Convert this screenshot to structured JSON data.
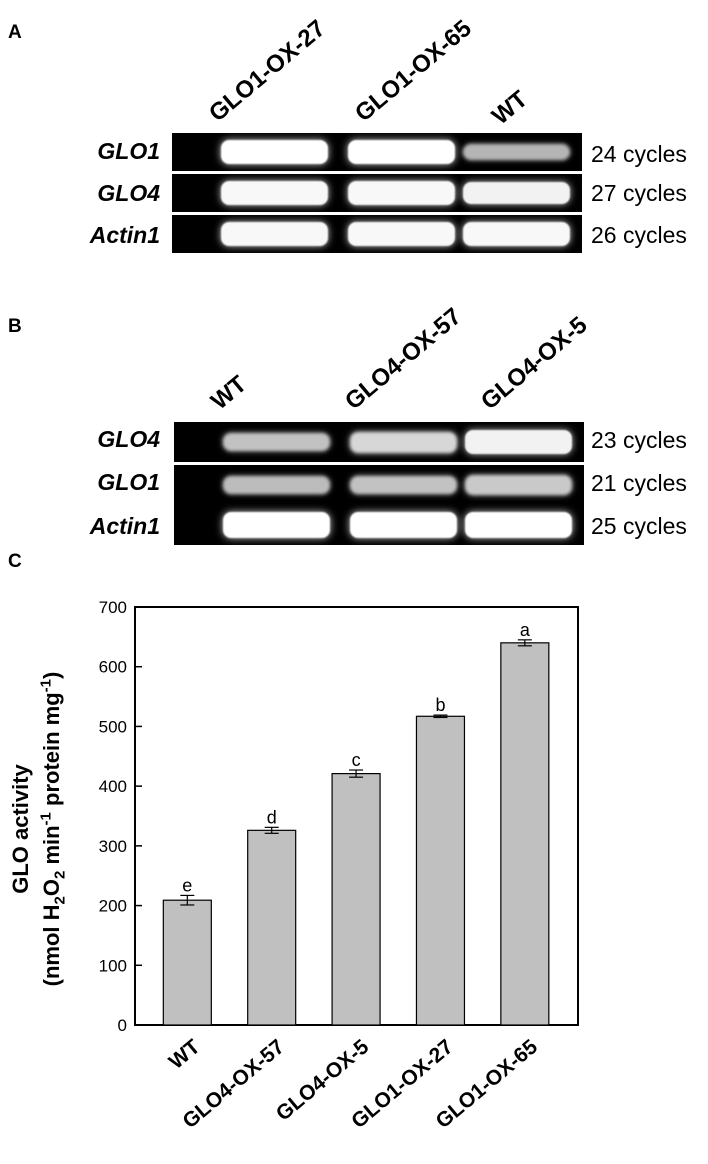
{
  "panel_a": {
    "letter": "A",
    "lanes": [
      "GLO1-OX-27",
      "GLO1-OX-65",
      "WT"
    ],
    "rows": [
      {
        "gene": "GLO1",
        "cycles": "24 cycles",
        "intensity": [
          1.0,
          1.0,
          0.45
        ]
      },
      {
        "gene": "GLO4",
        "cycles": "27 cycles",
        "intensity": [
          0.95,
          0.95,
          0.9
        ]
      },
      {
        "gene": "Actin1",
        "cycles": "26 cycles",
        "intensity": [
          0.95,
          0.95,
          0.95
        ]
      }
    ]
  },
  "panel_b": {
    "letter": "B",
    "lanes": [
      "WT",
      "GLO4-OX-57",
      "GLO4-OX-5"
    ],
    "rows": [
      {
        "gene": "GLO4",
        "cycles": "23 cycles",
        "intensity": [
          0.55,
          0.7,
          0.9
        ]
      },
      {
        "gene": "GLO1",
        "cycles": "21 cycles",
        "intensity": [
          0.5,
          0.55,
          0.6
        ]
      },
      {
        "gene": "Actin1",
        "cycles": "25 cycles",
        "intensity": [
          1.0,
          1.0,
          1.0
        ]
      }
    ]
  },
  "panel_c": {
    "letter": "C"
  },
  "chart_data": {
    "type": "bar",
    "categories": [
      "WT",
      "GLO4-OX-57",
      "GLO4-OX-5",
      "GLO1-OX-27",
      "GLO1-OX-65"
    ],
    "values": [
      209,
      326,
      421,
      517,
      640
    ],
    "errors": [
      8,
      5,
      6,
      2,
      5
    ],
    "significance_letters": [
      "e",
      "d",
      "c",
      "b",
      "a"
    ],
    "ylabel_line1": "GLO activity",
    "ylabel_line2": "(nmol H2O2 min-1 protein mg-1)",
    "ylim": [
      0,
      700
    ],
    "yticks": [
      0,
      100,
      200,
      300,
      400,
      500,
      600,
      700
    ],
    "bar_color": "#c0c0c0",
    "grid": false
  }
}
